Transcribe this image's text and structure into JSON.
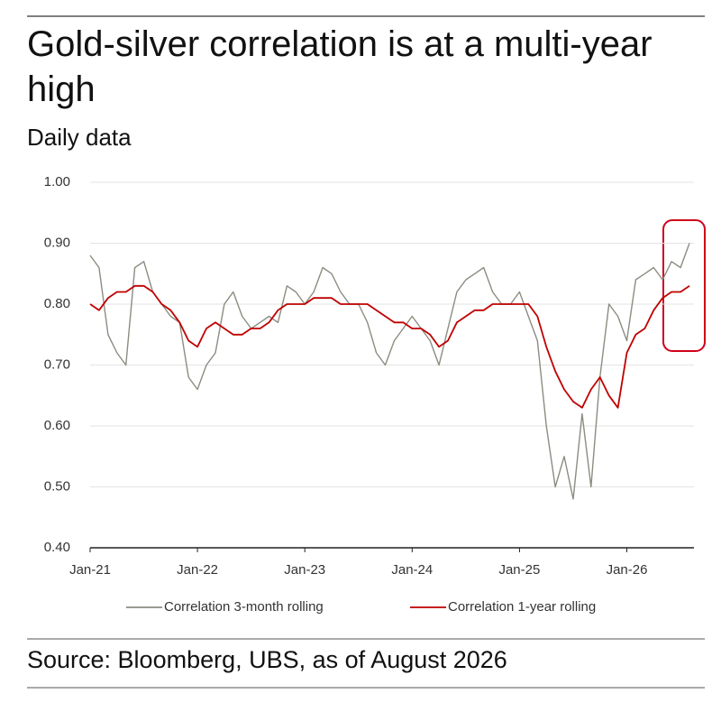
{
  "chart_data": {
    "type": "line",
    "title": "Gold-silver correlation is at a multi-year high",
    "subtitle": "Daily data",
    "source": "Source: Bloomberg, UBS, as of August 2026",
    "x": [
      "2021-01",
      "2021-02",
      "2021-03",
      "2021-04",
      "2021-05",
      "2021-06",
      "2021-07",
      "2021-08",
      "2021-09",
      "2021-10",
      "2021-11",
      "2021-12",
      "2022-01",
      "2022-02",
      "2022-03",
      "2022-04",
      "2022-05",
      "2022-06",
      "2022-07",
      "2022-08",
      "2022-09",
      "2022-10",
      "2022-11",
      "2022-12",
      "2023-01",
      "2023-02",
      "2023-03",
      "2023-04",
      "2023-05",
      "2023-06",
      "2023-07",
      "2023-08",
      "2023-09",
      "2023-10",
      "2023-11",
      "2023-12",
      "2024-01",
      "2024-02",
      "2024-03",
      "2024-04",
      "2024-05",
      "2024-06",
      "2024-07",
      "2024-08",
      "2024-09",
      "2024-10",
      "2024-11",
      "2024-12",
      "2025-01",
      "2025-02",
      "2025-03",
      "2025-04",
      "2025-05",
      "2025-06",
      "2025-07",
      "2025-08",
      "2025-09",
      "2025-10",
      "2025-11",
      "2025-12",
      "2026-01",
      "2026-02",
      "2026-03",
      "2026-04",
      "2026-05",
      "2026-06",
      "2026-07",
      "2026-08"
    ],
    "xlim": [
      "2021-01",
      "2026-08"
    ],
    "xticks": [
      {
        "value": "2021-01",
        "label": "Jan-21"
      },
      {
        "value": "2022-01",
        "label": "Jan-22"
      },
      {
        "value": "2023-01",
        "label": "Jan-23"
      },
      {
        "value": "2024-01",
        "label": "Jan-24"
      },
      {
        "value": "2025-01",
        "label": "Jan-25"
      },
      {
        "value": "2026-01",
        "label": "Jan-26"
      }
    ],
    "ylim": [
      0.4,
      1.0
    ],
    "yticks": [
      {
        "value": 0.4,
        "label": "0.40"
      },
      {
        "value": 0.5,
        "label": "0.50"
      },
      {
        "value": 0.6,
        "label": "0.60"
      },
      {
        "value": 0.7,
        "label": "0.70"
      },
      {
        "value": 0.8,
        "label": "0.80"
      },
      {
        "value": 0.9,
        "label": "0.90"
      },
      {
        "value": 1.0,
        "label": "1.00"
      }
    ],
    "grid": true,
    "series": [
      {
        "name": "Correlation 3-month rolling",
        "color": "#8c8c82",
        "values": [
          0.88,
          0.86,
          0.75,
          0.72,
          0.7,
          0.86,
          0.87,
          0.82,
          0.8,
          0.78,
          0.77,
          0.68,
          0.66,
          0.7,
          0.72,
          0.8,
          0.82,
          0.78,
          0.76,
          0.77,
          0.78,
          0.77,
          0.83,
          0.82,
          0.8,
          0.82,
          0.86,
          0.85,
          0.82,
          0.8,
          0.8,
          0.77,
          0.72,
          0.7,
          0.74,
          0.76,
          0.78,
          0.76,
          0.74,
          0.7,
          0.76,
          0.82,
          0.84,
          0.85,
          0.86,
          0.82,
          0.8,
          0.8,
          0.82,
          0.78,
          0.74,
          0.6,
          0.5,
          0.55,
          0.48,
          0.62,
          0.5,
          0.68,
          0.8,
          0.78,
          0.74,
          0.84,
          0.85,
          0.86,
          0.84,
          0.87,
          0.86,
          0.9
        ]
      },
      {
        "name": "Correlation 1-year rolling",
        "color": "#c00000",
        "values": [
          0.8,
          0.79,
          0.81,
          0.82,
          0.82,
          0.83,
          0.83,
          0.82,
          0.8,
          0.79,
          0.77,
          0.74,
          0.73,
          0.76,
          0.77,
          0.76,
          0.75,
          0.75,
          0.76,
          0.76,
          0.77,
          0.79,
          0.8,
          0.8,
          0.8,
          0.81,
          0.81,
          0.81,
          0.8,
          0.8,
          0.8,
          0.8,
          0.79,
          0.78,
          0.77,
          0.77,
          0.76,
          0.76,
          0.75,
          0.73,
          0.74,
          0.77,
          0.78,
          0.79,
          0.79,
          0.8,
          0.8,
          0.8,
          0.8,
          0.8,
          0.78,
          0.73,
          0.69,
          0.66,
          0.64,
          0.63,
          0.66,
          0.68,
          0.65,
          0.63,
          0.72,
          0.75,
          0.76,
          0.79,
          0.81,
          0.82,
          0.82,
          0.83
        ]
      }
    ]
  }
}
